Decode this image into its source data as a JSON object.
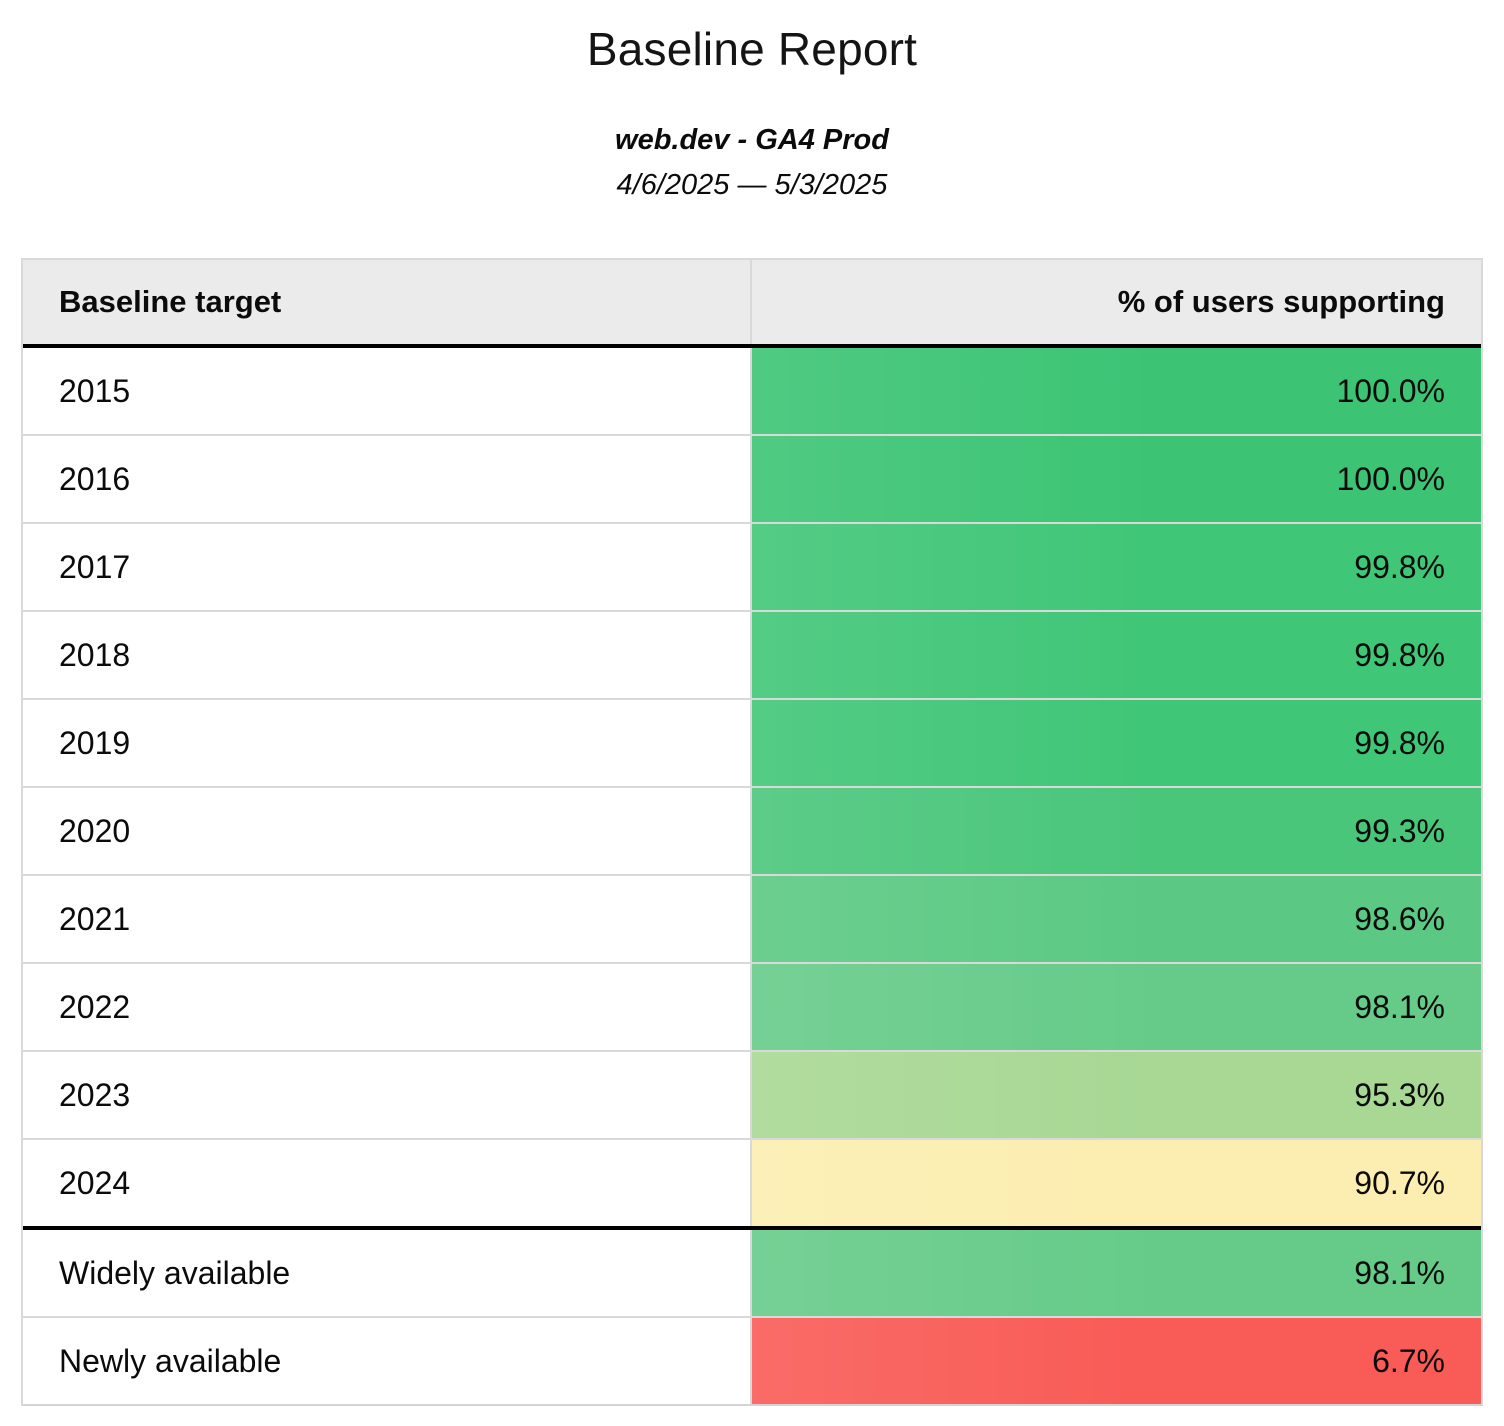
{
  "header": {
    "title": "Baseline Report",
    "subtitle": "web.dev - GA4 Prod",
    "date_range": "4/6/2025 — 5/3/2025"
  },
  "table": {
    "columns": [
      "Baseline target",
      "% of users supporting"
    ],
    "rows": [
      {
        "label": "2015",
        "value": "100.0%",
        "color": "#3cc474"
      },
      {
        "label": "2016",
        "value": "100.0%",
        "color": "#3cc474"
      },
      {
        "label": "2017",
        "value": "99.8%",
        "color": "#40c677"
      },
      {
        "label": "2018",
        "value": "99.8%",
        "color": "#40c677"
      },
      {
        "label": "2019",
        "value": "99.8%",
        "color": "#40c677"
      },
      {
        "label": "2020",
        "value": "99.3%",
        "color": "#4ac67b"
      },
      {
        "label": "2021",
        "value": "98.6%",
        "color": "#5bc983"
      },
      {
        "label": "2022",
        "value": "98.1%",
        "color": "#66cb89"
      },
      {
        "label": "2023",
        "value": "95.3%",
        "color": "#a8d894"
      },
      {
        "label": "2024",
        "value": "90.7%",
        "color": "#fceeb0"
      },
      {
        "label": "Widely available",
        "value": "98.1%",
        "color": "#66cb89"
      },
      {
        "label": "Newly available",
        "value": "6.7%",
        "color": "#f95b56"
      }
    ]
  },
  "chart_data": {
    "type": "table",
    "title": "Baseline Report",
    "subtitle": "web.dev - GA4 Prod",
    "date_range": "4/6/2025 — 5/3/2025",
    "columns": [
      "Baseline target",
      "% of users supporting"
    ],
    "rows": [
      [
        "2015",
        100.0
      ],
      [
        "2016",
        100.0
      ],
      [
        "2017",
        99.8
      ],
      [
        "2018",
        99.8
      ],
      [
        "2019",
        99.8
      ],
      [
        "2020",
        99.3
      ],
      [
        "2021",
        98.6
      ],
      [
        "2022",
        98.1
      ],
      [
        "2023",
        95.3
      ],
      [
        "2024",
        90.7
      ],
      [
        "Widely available",
        98.1
      ],
      [
        "Newly available",
        6.7
      ]
    ],
    "value_unit": "%",
    "value_range": [
      0,
      100
    ],
    "color_scale": "green (high) → yellow (mid) → red (low)"
  }
}
